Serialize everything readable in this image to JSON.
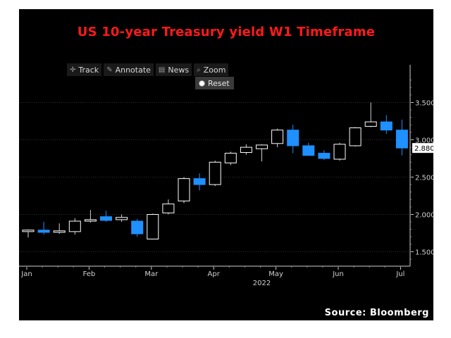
{
  "title": "US 10-year Treasury yield W1 Timeframe",
  "source": "Source: Bloomberg",
  "toolbar": {
    "track_label": "Track",
    "annotate_label": "Annotate",
    "news_label": "News",
    "zoom_label": "Zoom",
    "reset_label": "Reset"
  },
  "colors": {
    "up": "#000000",
    "down": "#1e90ff",
    "axis": "#d0d0d0",
    "title": "#ff1a1a"
  },
  "chart_data": {
    "type": "candlestick",
    "title": "US 10-year Treasury yield W1 Timeframe",
    "xlabel": "2022",
    "ylabel": "",
    "ylim": [
      1.35,
      3.9
    ],
    "y_ticks": [
      1.5,
      2.0,
      2.5,
      3.0,
      3.5
    ],
    "y_tick_labels": [
      "1.500",
      "2.000",
      "2.500",
      "3.000",
      "3.500"
    ],
    "x_tick_labels": [
      "Jan",
      "Feb",
      "Mar",
      "Apr",
      "May",
      "Jun",
      "Jul"
    ],
    "x_tick_week_index": [
      0,
      4,
      8,
      12,
      16,
      20,
      24
    ],
    "year_label": "2022",
    "last_price_label": "2.880",
    "candles": [
      {
        "open": 1.77,
        "high": 1.8,
        "low": 1.69,
        "close": 1.79
      },
      {
        "open": 1.79,
        "high": 1.9,
        "low": 1.73,
        "close": 1.76
      },
      {
        "open": 1.76,
        "high": 1.88,
        "low": 1.74,
        "close": 1.78
      },
      {
        "open": 1.77,
        "high": 1.95,
        "low": 1.73,
        "close": 1.91
      },
      {
        "open": 1.91,
        "high": 2.06,
        "low": 1.89,
        "close": 1.93
      },
      {
        "open": 1.97,
        "high": 2.05,
        "low": 1.9,
        "close": 1.92
      },
      {
        "open": 1.93,
        "high": 2.0,
        "low": 1.9,
        "close": 1.96
      },
      {
        "open": 1.91,
        "high": 1.94,
        "low": 1.7,
        "close": 1.74
      },
      {
        "open": 1.67,
        "high": 2.01,
        "low": 1.67,
        "close": 2.0
      },
      {
        "open": 2.02,
        "high": 2.2,
        "low": 2.0,
        "close": 2.14
      },
      {
        "open": 2.18,
        "high": 2.5,
        "low": 2.15,
        "close": 2.48
      },
      {
        "open": 2.48,
        "high": 2.55,
        "low": 2.32,
        "close": 2.4
      },
      {
        "open": 2.4,
        "high": 2.72,
        "low": 2.38,
        "close": 2.7
      },
      {
        "open": 2.69,
        "high": 2.84,
        "low": 2.66,
        "close": 2.82
      },
      {
        "open": 2.83,
        "high": 2.94,
        "low": 2.8,
        "close": 2.9
      },
      {
        "open": 2.88,
        "high": 2.94,
        "low": 2.71,
        "close": 2.93
      },
      {
        "open": 2.95,
        "high": 3.15,
        "low": 2.9,
        "close": 3.13
      },
      {
        "open": 3.13,
        "high": 3.2,
        "low": 2.82,
        "close": 2.92
      },
      {
        "open": 2.92,
        "high": 2.96,
        "low": 2.79,
        "close": 2.79
      },
      {
        "open": 2.82,
        "high": 2.86,
        "low": 2.73,
        "close": 2.75
      },
      {
        "open": 2.74,
        "high": 2.96,
        "low": 2.72,
        "close": 2.94
      },
      {
        "open": 2.92,
        "high": 3.17,
        "low": 2.91,
        "close": 3.16
      },
      {
        "open": 3.18,
        "high": 3.5,
        "low": 3.17,
        "close": 3.24
      },
      {
        "open": 3.24,
        "high": 3.33,
        "low": 3.08,
        "close": 3.13
      },
      {
        "open": 3.13,
        "high": 3.27,
        "low": 2.79,
        "close": 2.89
      }
    ]
  }
}
